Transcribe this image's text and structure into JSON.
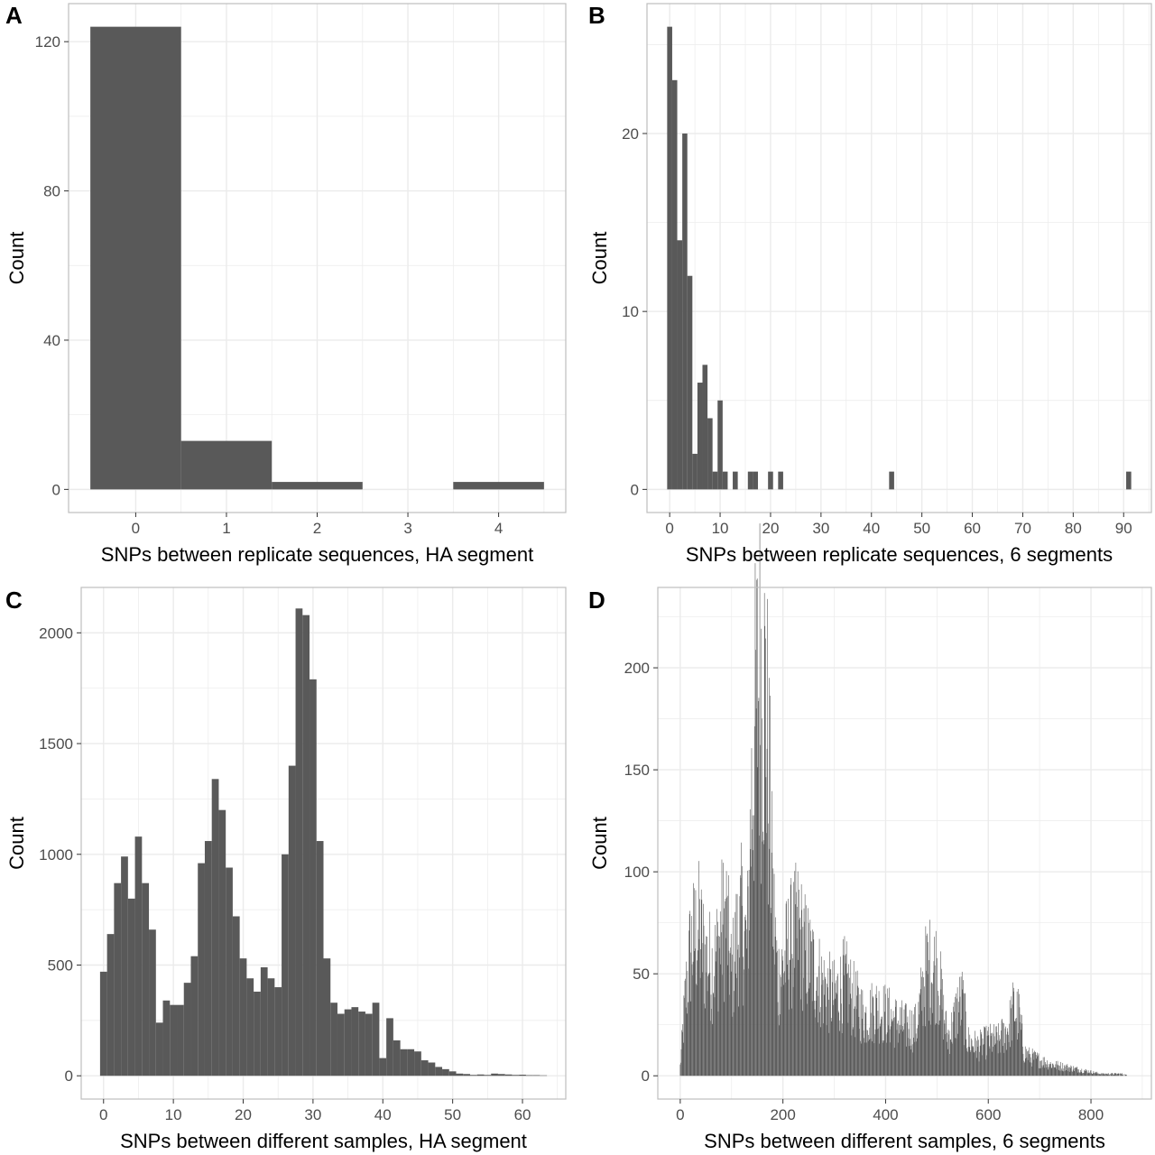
{
  "colors": {
    "bar": "#595959",
    "grid": "#ebebeb",
    "panel_border": "#bdbdbd",
    "tick_text": "#4d4d4d"
  },
  "chart_data": [
    {
      "panel": "A",
      "type": "bar",
      "xlabel": "SNPs between replicate sequences, HA segment",
      "ylabel": "Count",
      "xlim": [
        -0.74,
        4.74
      ],
      "ylim": [
        -6.2,
        130.2
      ],
      "xticks": [
        0,
        1,
        2,
        3,
        4
      ],
      "yticks": [
        0,
        40,
        80,
        120
      ],
      "grid": true,
      "binwidth": 1,
      "x": [
        0,
        1,
        2,
        3,
        4
      ],
      "values": [
        124,
        13,
        2,
        0,
        2
      ]
    },
    {
      "panel": "B",
      "type": "bar",
      "xlabel": "SNPs between replicate sequences, 6 segments",
      "ylabel": "Count",
      "xlim": [
        -4.5,
        95.5
      ],
      "ylim": [
        -1.3,
        27.3
      ],
      "xticks": [
        0,
        10,
        20,
        30,
        40,
        50,
        60,
        70,
        80,
        90
      ],
      "yticks": [
        0,
        10,
        20
      ],
      "grid": true,
      "binwidth": 1,
      "x": [
        0,
        1,
        2,
        3,
        4,
        5,
        6,
        7,
        8,
        9,
        10,
        11,
        13,
        16,
        17,
        20,
        22,
        44,
        91
      ],
      "values": [
        26,
        23,
        14,
        20,
        12,
        2,
        6,
        7,
        4,
        1,
        5,
        1,
        1,
        1,
        1,
        1,
        1,
        1,
        1
      ]
    },
    {
      "panel": "C",
      "type": "bar",
      "xlabel": "SNPs between different samples, HA segment",
      "ylabel": "Count",
      "xlim": [
        -3.2,
        66.2
      ],
      "ylim": [
        -105,
        2205
      ],
      "xticks": [
        0,
        10,
        20,
        30,
        40,
        50,
        60
      ],
      "yticks": [
        0,
        500,
        1000,
        1500,
        2000
      ],
      "grid": true,
      "binwidth": 1,
      "x": [
        0,
        1,
        2,
        3,
        4,
        5,
        6,
        7,
        8,
        9,
        10,
        11,
        12,
        13,
        14,
        15,
        16,
        17,
        18,
        19,
        20,
        21,
        22,
        23,
        24,
        25,
        26,
        27,
        28,
        29,
        30,
        31,
        32,
        33,
        34,
        35,
        36,
        37,
        38,
        39,
        40,
        41,
        42,
        43,
        44,
        45,
        46,
        47,
        48,
        49,
        50,
        51,
        52,
        53,
        54,
        55,
        56,
        57,
        58,
        59,
        60,
        61,
        62,
        63
      ],
      "values": [
        470,
        640,
        870,
        990,
        800,
        1080,
        870,
        660,
        240,
        340,
        320,
        320,
        420,
        540,
        960,
        1060,
        1340,
        1200,
        940,
        720,
        530,
        440,
        380,
        490,
        440,
        400,
        1000,
        1400,
        2110,
        2080,
        1790,
        1060,
        530,
        330,
        280,
        300,
        310,
        290,
        280,
        330,
        80,
        260,
        160,
        120,
        120,
        110,
        70,
        60,
        40,
        30,
        20,
        10,
        8,
        4,
        6,
        4,
        10,
        8,
        6,
        4,
        5,
        3,
        3,
        2
      ]
    },
    {
      "panel": "D",
      "type": "bar",
      "xlabel": "SNPs between different samples, 6 segments",
      "ylabel": "Count",
      "xlim": [
        -43.7,
        917.7
      ],
      "ylim": [
        -11.4,
        239.4
      ],
      "xticks": [
        0,
        200,
        400,
        600,
        800
      ],
      "yticks": [
        0,
        50,
        100,
        150,
        200
      ],
      "grid": true,
      "binwidth": 1,
      "profile_x": [
        0,
        10,
        20,
        35,
        50,
        65,
        80,
        90,
        100,
        110,
        120,
        130,
        140,
        150,
        160,
        170,
        180,
        190,
        200,
        210,
        220,
        230,
        240,
        260,
        280,
        300,
        320,
        340,
        360,
        380,
        400,
        420,
        440,
        460,
        480,
        500,
        520,
        530,
        540,
        550,
        560,
        580,
        600,
        620,
        640,
        650,
        660,
        670,
        680,
        700,
        720,
        740,
        760,
        780,
        800,
        820,
        840,
        860,
        875
      ],
      "profile_y": [
        5,
        40,
        65,
        75,
        60,
        55,
        75,
        80,
        50,
        70,
        80,
        65,
        150,
        195,
        210,
        170,
        90,
        50,
        55,
        65,
        70,
        75,
        65,
        55,
        45,
        40,
        48,
        38,
        30,
        35,
        32,
        28,
        25,
        25,
        55,
        55,
        20,
        25,
        35,
        38,
        18,
        15,
        18,
        18,
        25,
        35,
        30,
        12,
        10,
        8,
        6,
        5,
        4,
        3,
        2,
        1,
        1,
        1,
        0
      ]
    }
  ]
}
